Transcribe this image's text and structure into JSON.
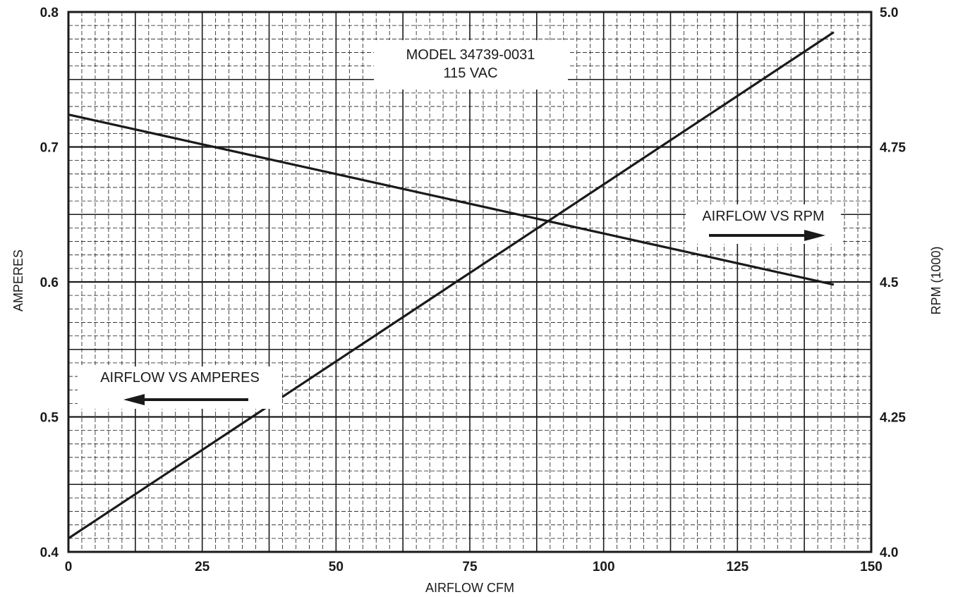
{
  "chart_data": {
    "type": "line",
    "title_lines": [
      "MODEL 34739-0031",
      "115 VAC"
    ],
    "xlabel": "AIRFLOW CFM",
    "ylabel_left": "AMPERES",
    "ylabel_right": "RPM (1000)",
    "xlim": [
      0,
      150
    ],
    "ylim_left": [
      0.4,
      0.8
    ],
    "ylim_right": [
      4.0,
      5.0
    ],
    "x_ticks": [
      "0",
      "25",
      "50",
      "75",
      "100",
      "125",
      "150"
    ],
    "y_left_ticks": [
      "0.4",
      "0.5",
      "0.6",
      "0.7",
      "0.8"
    ],
    "y_right_ticks": [
      "4.0",
      "4.25",
      "4.5",
      "4.75",
      "5.0"
    ],
    "grid": true,
    "series": [
      {
        "name": "AIRFLOW VS AMPERES",
        "axis": "left",
        "direction": "left",
        "x": [
          0,
          143
        ],
        "y": [
          0.41,
          0.785
        ]
      },
      {
        "name": "AIRFLOW VS RPM",
        "axis": "right",
        "direction": "right",
        "x": [
          0,
          143
        ],
        "y": [
          4.81,
          4.495
        ]
      }
    ],
    "line_color": "#1a1a1a"
  }
}
